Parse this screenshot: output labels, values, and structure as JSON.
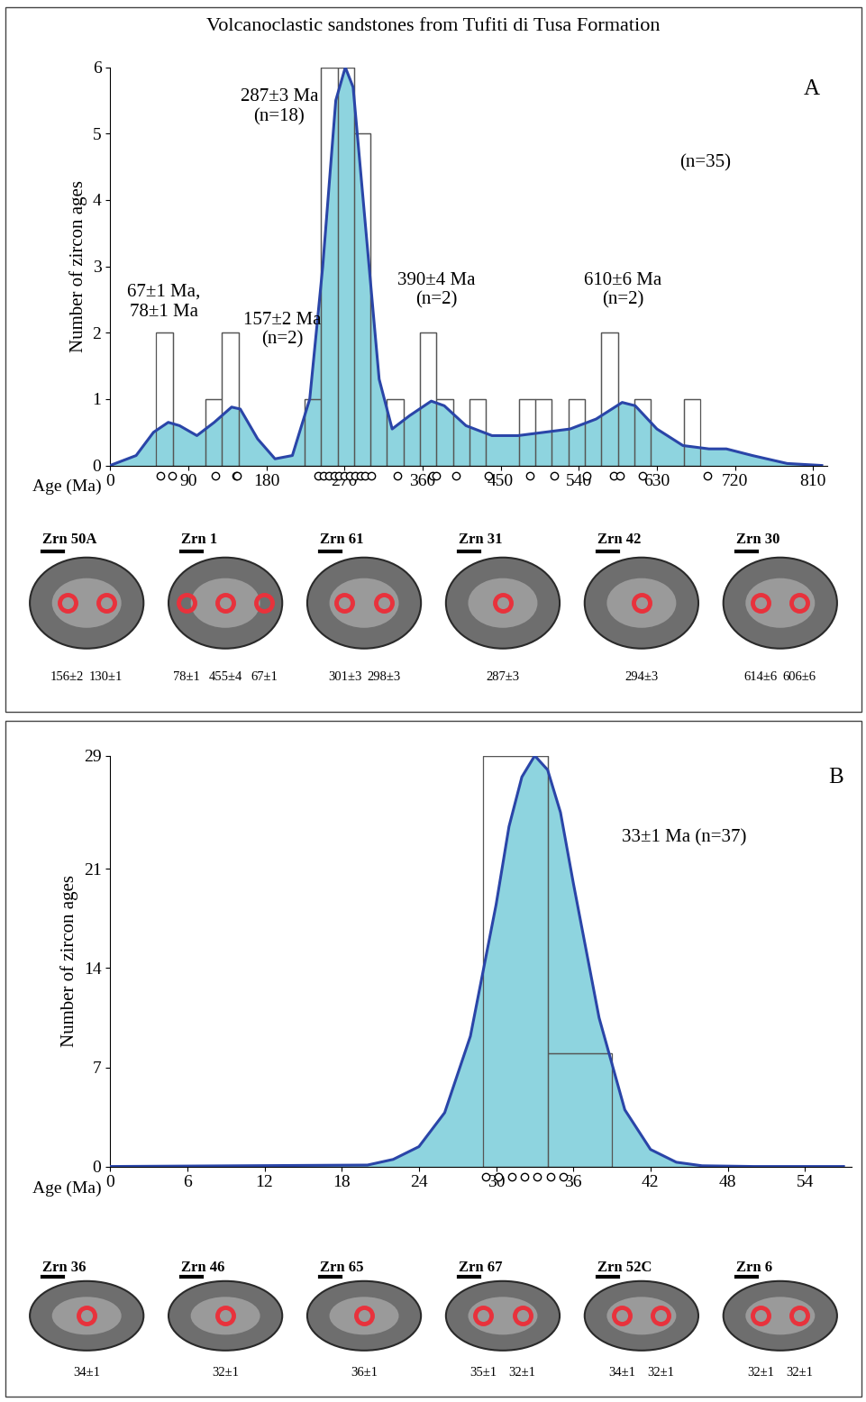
{
  "title": "Volcanoclastic sandstones from Tufiti di Tusa Formation",
  "chart_data": [
    {
      "type": "histogram",
      "panel_label": "A",
      "x_label": "Age (Ma)",
      "y_label": "Number of zircon ages",
      "bins": [
        53,
        72,
        91,
        110,
        129,
        148,
        167,
        186,
        205,
        224,
        243,
        262,
        281,
        300,
        319,
        338,
        357,
        376,
        395,
        414,
        433,
        452,
        471,
        490,
        509,
        528,
        547,
        566,
        585,
        604,
        623,
        642,
        661,
        680
      ],
      "counts": [
        2,
        0,
        0,
        1,
        2,
        0,
        0,
        0,
        0,
        1,
        6,
        6,
        5,
        0,
        1,
        0,
        2,
        1,
        0,
        1,
        0,
        0,
        1,
        1,
        0,
        1,
        0,
        2,
        0,
        1,
        0,
        0,
        1
      ],
      "color": "#8ed4df",
      "density_curve": {
        "color": "#2a45a8",
        "x": [
          0,
          30,
          50,
          67,
          80,
          100,
          120,
          140,
          150,
          170,
          190,
          210,
          230,
          245,
          260,
          271,
          280,
          295,
          310,
          325,
          345,
          370,
          385,
          410,
          440,
          470,
          500,
          530,
          560,
          590,
          605,
          630,
          660,
          690,
          710,
          740,
          780,
          820
        ],
        "y": [
          0.0,
          0.15,
          0.5,
          0.65,
          0.6,
          0.45,
          0.65,
          0.88,
          0.85,
          0.4,
          0.1,
          0.15,
          1.0,
          3.0,
          5.5,
          6.0,
          5.7,
          3.5,
          1.3,
          0.55,
          0.75,
          0.97,
          0.9,
          0.6,
          0.45,
          0.45,
          0.5,
          0.55,
          0.7,
          0.95,
          0.9,
          0.55,
          0.3,
          0.25,
          0.25,
          0.15,
          0.03,
          0.0
        ]
      },
      "age_markers": [
        58,
        71,
        121,
        145,
        146,
        240,
        246,
        252,
        258,
        264,
        270,
        276,
        282,
        288,
        294,
        301,
        331,
        372,
        376,
        398,
        436,
        484,
        512,
        549,
        580,
        587,
        613,
        688
      ],
      "xlim": [
        0,
        826
      ],
      "xticks": [
        0,
        90,
        180,
        270,
        360,
        450,
        540,
        630,
        720,
        810
      ],
      "ylim": [
        0,
        6
      ],
      "yticks": [
        0,
        1,
        2,
        3,
        4,
        5,
        6
      ],
      "annotations": [
        "287±3 Ma\n(n=18)",
        "67±1 Ma,\n78±1 Ma",
        "157±2 Ma\n(n=2)",
        "390±4 Ma\n(n=2)",
        "610±6 Ma\n(n=2)",
        "(n=35)"
      ],
      "zircon_images": [
        {
          "grain": "Zrn 50A",
          "spot_ages": [
            "156±2",
            "130±1"
          ]
        },
        {
          "grain": "Zrn 1",
          "spot_ages": [
            "78±1",
            "455±4",
            "67±1"
          ]
        },
        {
          "grain": "Zrn 61",
          "spot_ages": [
            "301±3",
            "298±3"
          ]
        },
        {
          "grain": "Zrn 31",
          "spot_ages": [
            "287±3"
          ]
        },
        {
          "grain": "Zrn 42",
          "spot_ages": [
            "294±3"
          ]
        },
        {
          "grain": "Zrn 30",
          "spot_ages": [
            "614±6",
            "606±6"
          ]
        }
      ]
    },
    {
      "type": "histogram",
      "panel_label": "B",
      "x_label": "Age (Ma)",
      "y_label": "Number of zircon ages",
      "bins": [
        29,
        34,
        39
      ],
      "counts": [
        29,
        8
      ],
      "color": "#8ed4df",
      "density_curve": {
        "color": "#2a45a8",
        "x": [
          0,
          20,
          22,
          24,
          26,
          28,
          30,
          31,
          32,
          33,
          34,
          35,
          36,
          38,
          40,
          42,
          44,
          46,
          50,
          57
        ],
        "y": [
          0,
          0.1,
          0.5,
          1.4,
          3.8,
          9.2,
          18.5,
          24,
          27.5,
          29,
          28,
          25,
          20,
          10.5,
          4,
          1.2,
          0.3,
          0.05,
          0,
          0
        ]
      },
      "age_markers": [
        29.2,
        30.2,
        31.2,
        32.2,
        33.2,
        34.2,
        35.2
      ],
      "xlim": [
        0,
        57.6
      ],
      "xticks": [
        0,
        6,
        12,
        18,
        24,
        30,
        36,
        42,
        48,
        54
      ],
      "ylim": [
        0,
        29
      ],
      "yticks": [
        0,
        7,
        14,
        21,
        29
      ],
      "annotations": [
        "33±1 Ma (n=37)"
      ],
      "zircon_images": [
        {
          "grain": "Zrn 36",
          "spot_ages": [
            "34±1"
          ]
        },
        {
          "grain": "Zrn 46",
          "spot_ages": [
            "32±1"
          ]
        },
        {
          "grain": "Zrn 65",
          "spot_ages": [
            "36±1"
          ]
        },
        {
          "grain": "Zrn 67",
          "spot_ages": [
            "35±1",
            "32±1"
          ]
        },
        {
          "grain": "Zrn 52C",
          "spot_ages": [
            "34±1",
            "32±1"
          ]
        },
        {
          "grain": "Zrn 6",
          "spot_ages": [
            "32±1",
            "32±1"
          ]
        }
      ]
    }
  ]
}
